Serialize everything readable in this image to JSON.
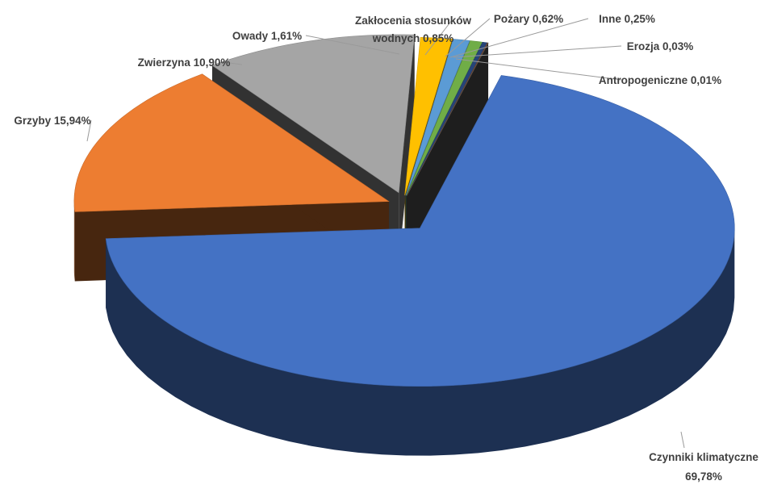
{
  "chart_data": {
    "type": "pie",
    "style": "3d-exploded",
    "title": "",
    "slices": [
      {
        "name": "Czynniki klimatyczne",
        "value": 69.78,
        "label": "Czynniki klimatyczne 69,78%",
        "color": "#4472c4"
      },
      {
        "name": "Grzyby",
        "value": 15.94,
        "label": "Grzyby 15,94%",
        "color": "#ed7d31"
      },
      {
        "name": "Zwierzyna",
        "value": 10.9,
        "label": "Zwierzyna 10,90%",
        "color": "#a5a5a5"
      },
      {
        "name": "Owady",
        "value": 1.61,
        "label": "Owady 1,61%",
        "color": "#ffc000"
      },
      {
        "name": "Zakłocenia stosunków wodnych",
        "value": 0.85,
        "label": "Zakłocenia stosunków wodnych 0,85%",
        "color": "#5b9bd5"
      },
      {
        "name": "Pożary",
        "value": 0.62,
        "label": "Pożary 0,62%",
        "color": "#70ad47"
      },
      {
        "name": "Inne",
        "value": 0.25,
        "label": "Inne 0,25%",
        "color": "#264478"
      },
      {
        "name": "Erozja",
        "value": 0.03,
        "label": "Erozja 0,03%",
        "color": "#9e480e"
      },
      {
        "name": "Antropogeniczne",
        "value": 0.01,
        "label": "Antropogeniczne 0,01%",
        "color": "#636363"
      }
    ]
  }
}
